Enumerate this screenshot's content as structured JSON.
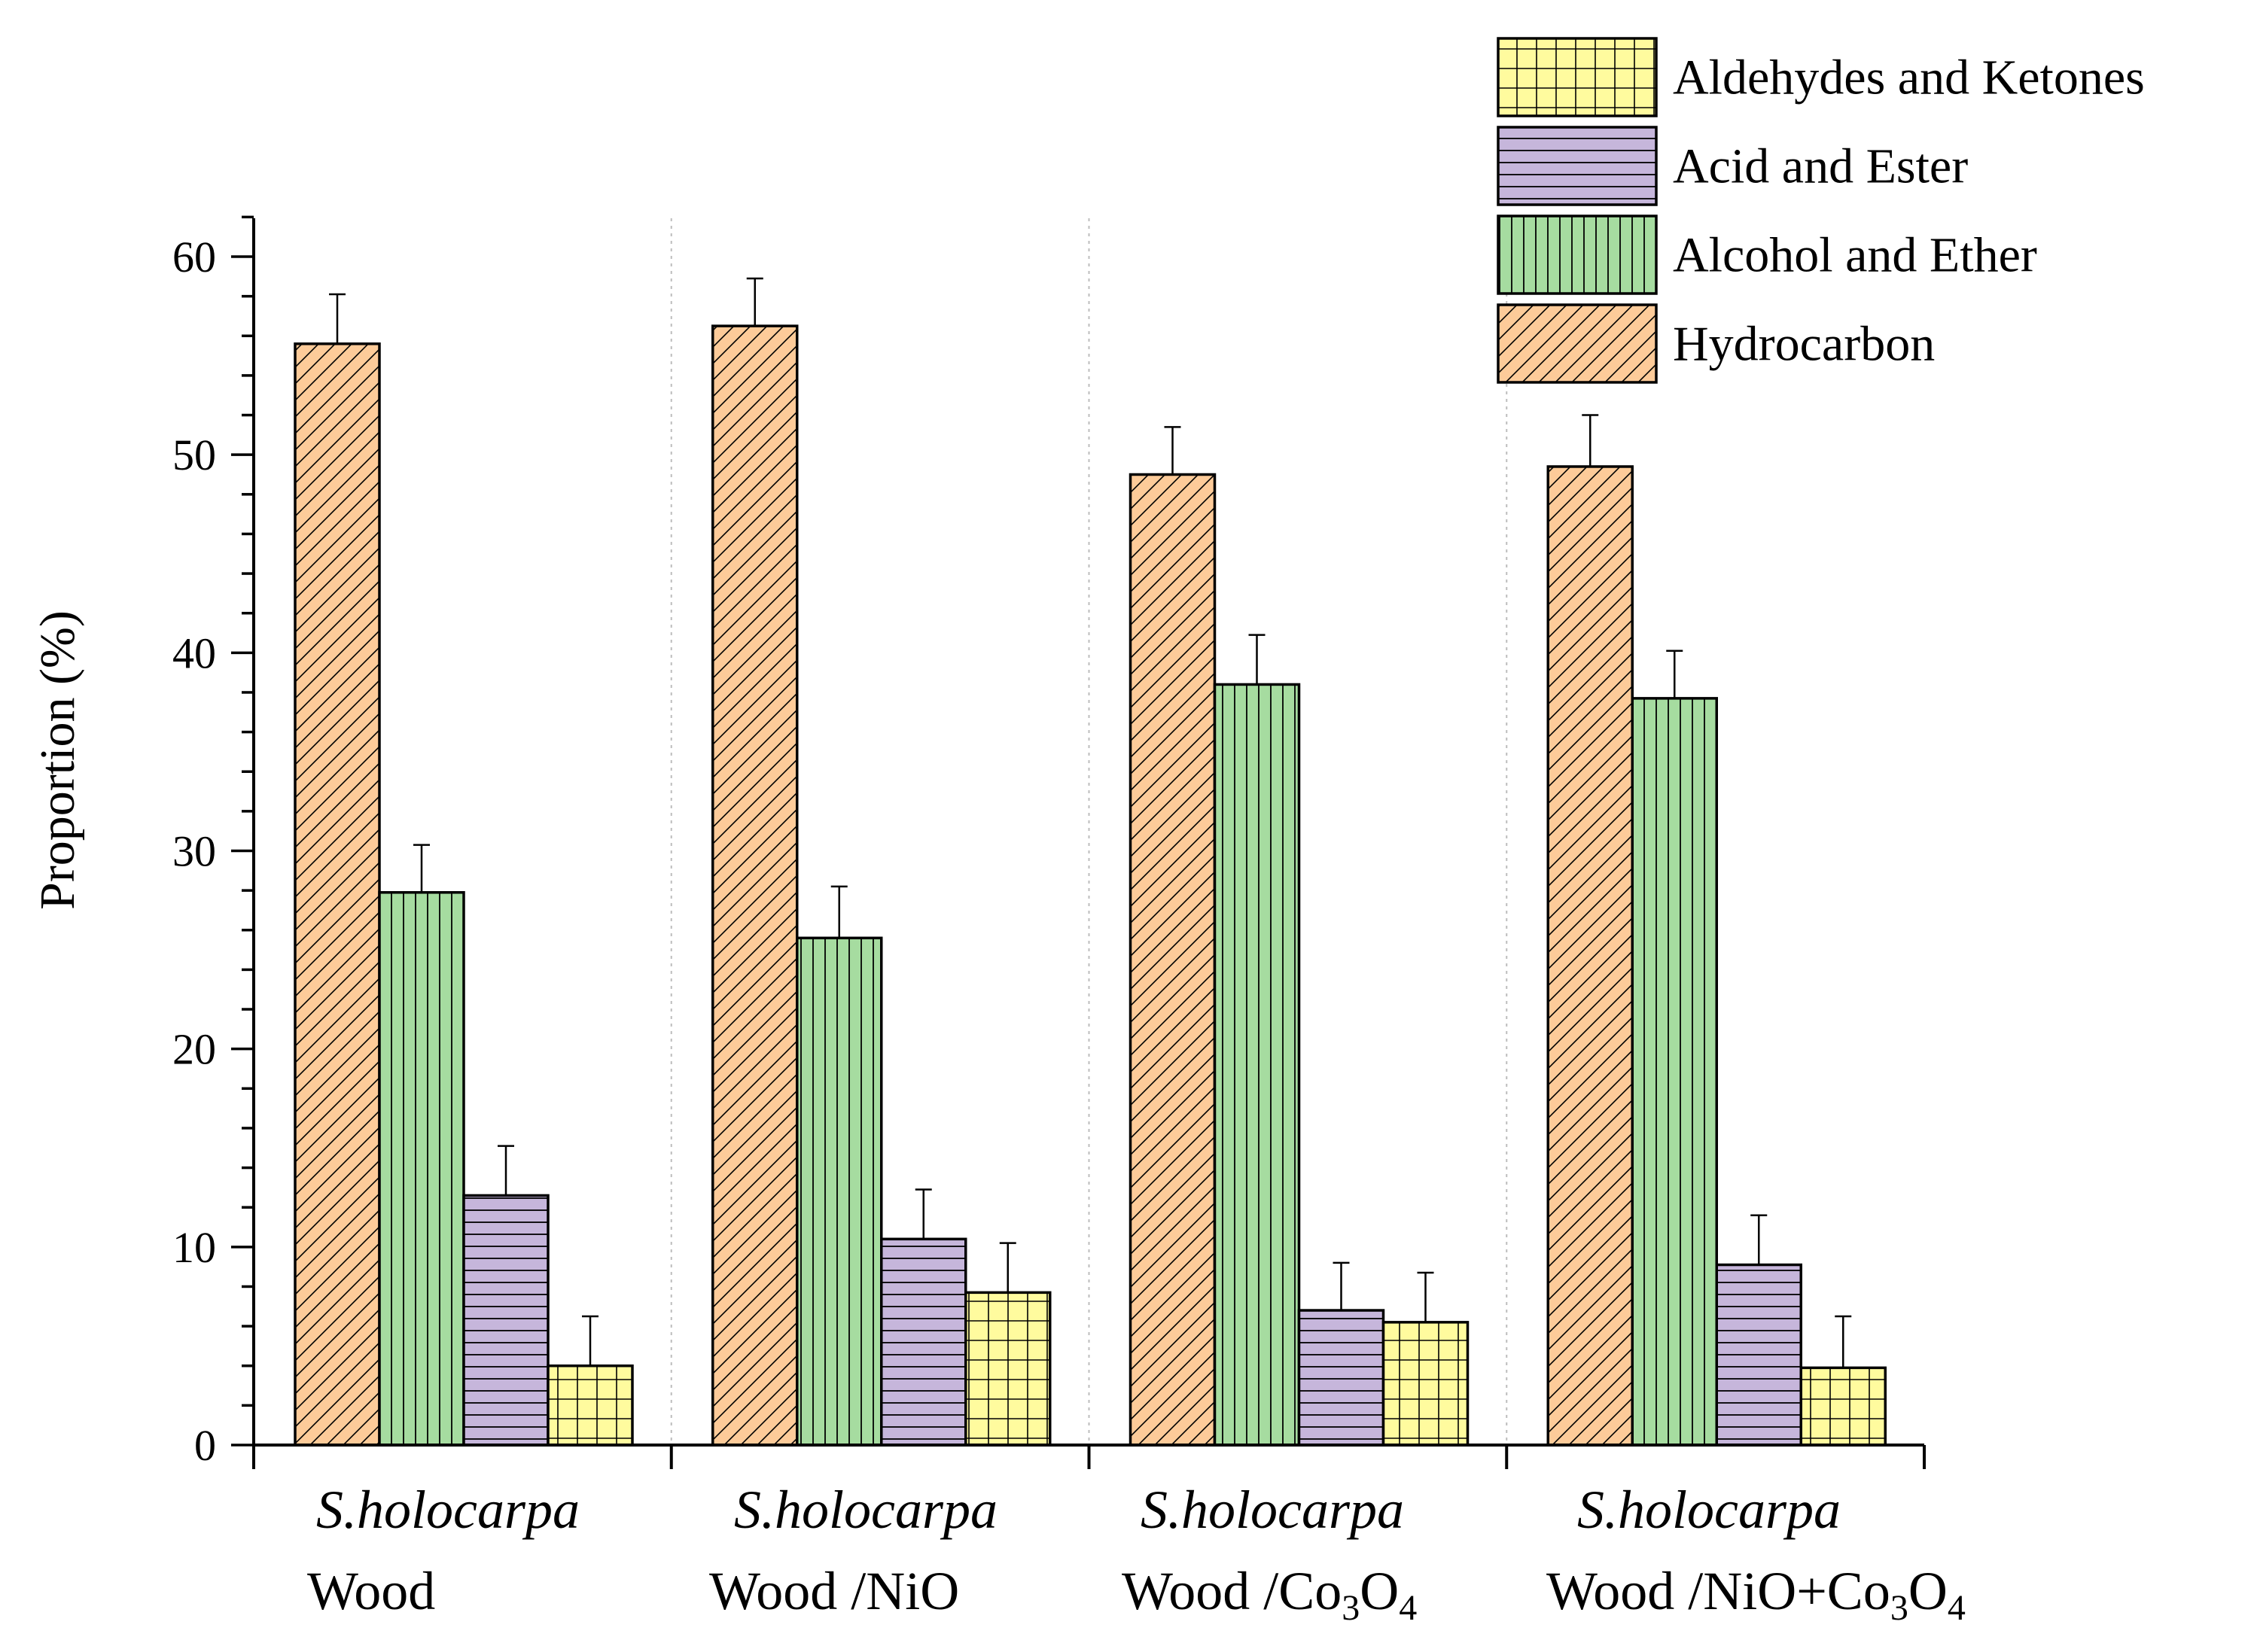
{
  "chart_data": {
    "type": "bar",
    "title": "",
    "xlabel": "",
    "ylabel": "Proportion (%)",
    "ylim": [
      0,
      62
    ],
    "yticks": [
      0,
      10,
      20,
      30,
      40,
      50,
      60
    ],
    "categories": [
      {
        "line1": "S.holocarpa",
        "line2": "Wood",
        "line2_parts": [
          {
            "t": "Wood"
          }
        ]
      },
      {
        "line1": "S.holocarpa",
        "line2": "Wood /NiO",
        "line2_parts": [
          {
            "t": "Wood /NiO"
          }
        ]
      },
      {
        "line1": "S.holocarpa",
        "line2": "Wood /Co3O4",
        "line2_parts": [
          {
            "t": "Wood /Co"
          },
          {
            "t": "3",
            "sub": true
          },
          {
            "t": "O"
          },
          {
            "t": "4",
            "sub": true
          }
        ]
      },
      {
        "line1": "S.holocarpa",
        "line2": "Wood /NiO+Co3O4",
        "line2_parts": [
          {
            "t": "Wood /NiO+Co"
          },
          {
            "t": "3",
            "sub": true
          },
          {
            "t": "O"
          },
          {
            "t": "4",
            "sub": true
          }
        ]
      }
    ],
    "series": [
      {
        "name": "Hydrocarbon",
        "color": "#FDCB99",
        "pattern": "diagonal",
        "values": [
          55.6,
          56.5,
          49.0,
          49.4
        ],
        "errors": [
          2.5,
          2.4,
          2.4,
          2.6
        ]
      },
      {
        "name": "Alcohol and Ether",
        "color": "#A6DCA0",
        "pattern": "vertical",
        "values": [
          27.9,
          25.6,
          38.4,
          37.7
        ],
        "errors": [
          2.4,
          2.6,
          2.5,
          2.4
        ]
      },
      {
        "name": "Acid and Ester",
        "color": "#C6B6DB",
        "pattern": "horizontal",
        "values": [
          12.6,
          10.4,
          6.8,
          9.1
        ],
        "errors": [
          2.5,
          2.5,
          2.4,
          2.5
        ]
      },
      {
        "name": "Aldehydes and Ketones",
        "color": "#FFFB9E",
        "pattern": "grid",
        "values": [
          4.0,
          7.7,
          6.2,
          3.9
        ],
        "errors": [
          2.5,
          2.5,
          2.5,
          2.6
        ]
      }
    ],
    "legend": {
      "position": "top-right",
      "order": [
        "Aldehydes and Ketones",
        "Acid and Ester",
        "Alcohol and Ether",
        "Hydrocarbon"
      ]
    },
    "error_bars": "upper",
    "grid": false
  }
}
